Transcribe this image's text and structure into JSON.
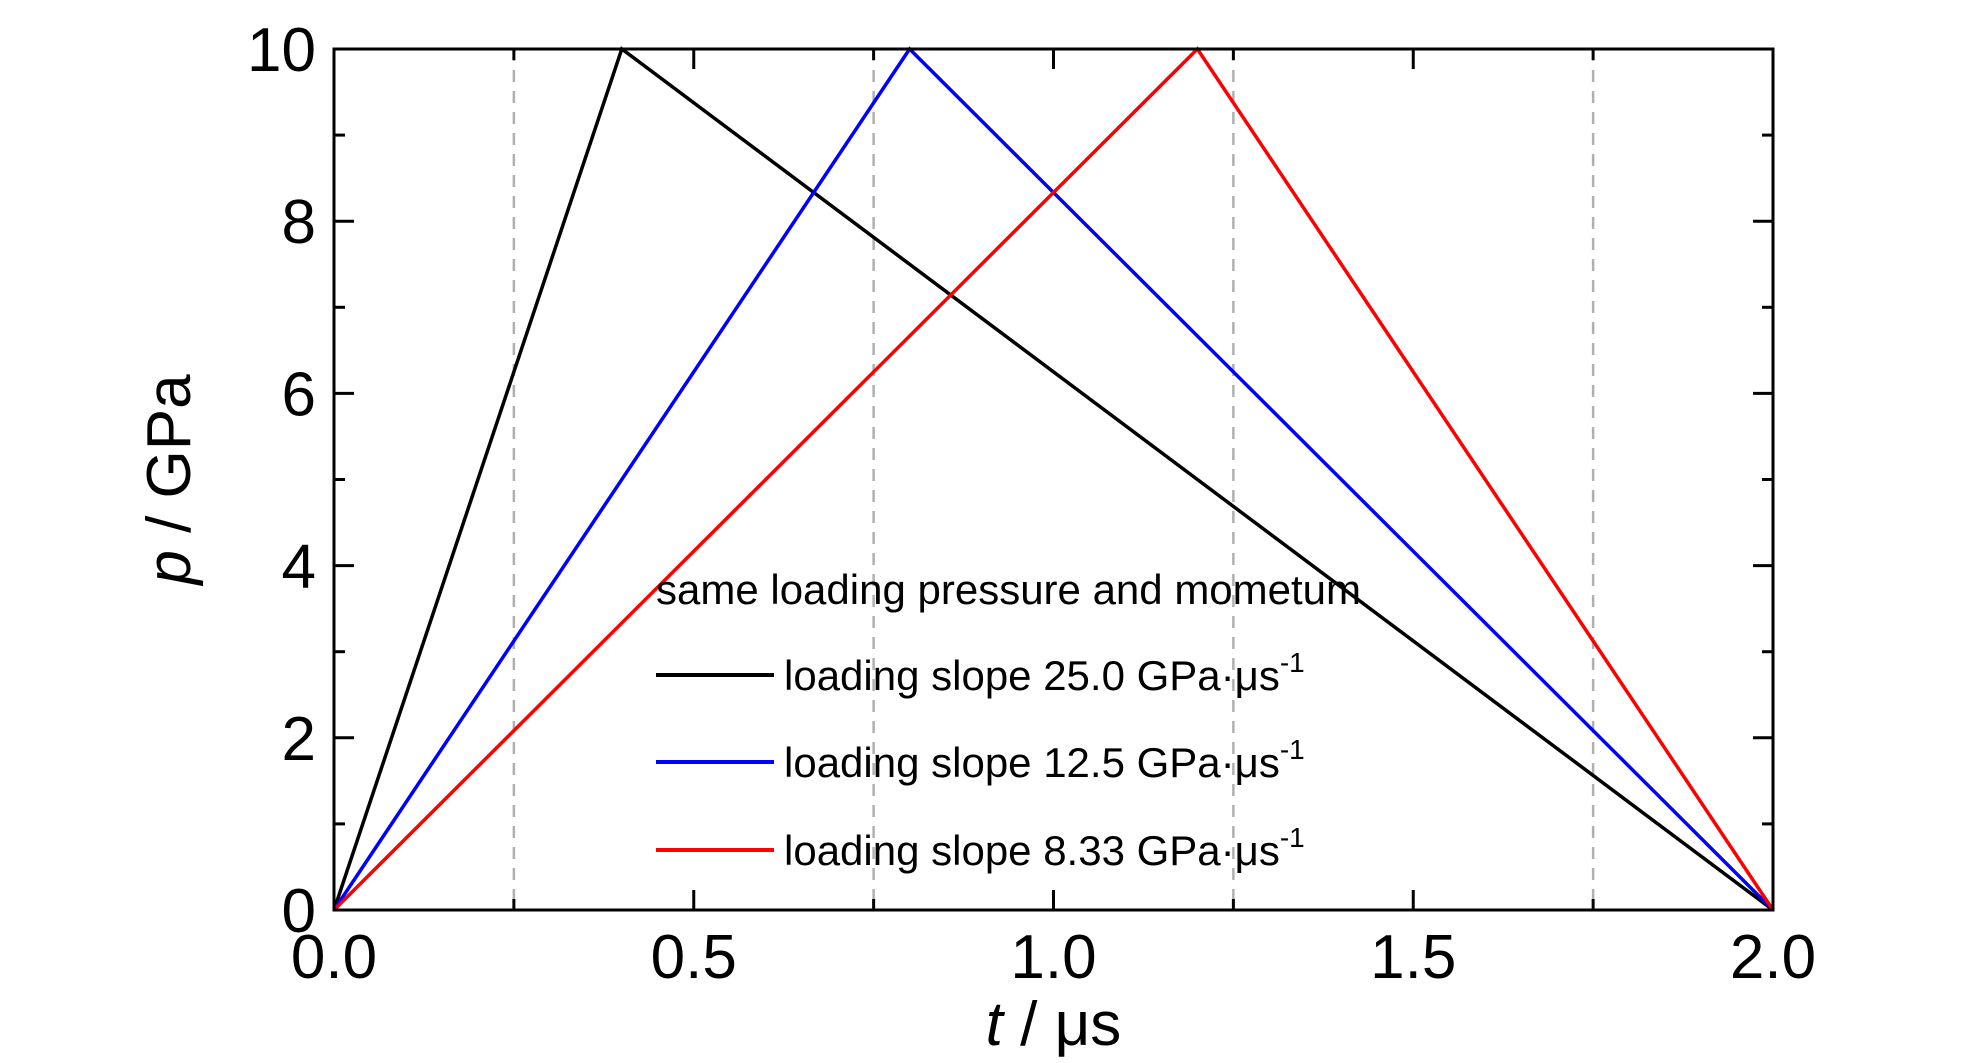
{
  "chart_data": {
    "type": "line",
    "title": "",
    "xlabel_var": "t",
    "xlabel_unit": " / μs",
    "ylabel_var": "p",
    "ylabel_unit": " / GPa",
    "xlim": [
      0,
      2.0
    ],
    "ylim": [
      0,
      10
    ],
    "x_ticks": [
      0.0,
      0.5,
      1.0,
      1.5,
      2.0
    ],
    "x_tick_labels": [
      "0.0",
      "0.5",
      "1.0",
      "1.5",
      "2.0"
    ],
    "y_ticks": [
      0,
      2,
      4,
      6,
      8,
      10
    ],
    "y_tick_labels": [
      "0",
      "2",
      "4",
      "6",
      "8",
      "10"
    ],
    "vertical_gridlines_dashed": [
      0.25,
      0.75,
      1.25,
      1.75
    ],
    "legend_title": "same loading pressure and mometum",
    "legend_position": "lower-center",
    "series": [
      {
        "name": "loading slope 25.0 GPa·μs",
        "name_sup": "-1",
        "color": "#000000",
        "x": [
          0.0,
          0.4,
          2.0
        ],
        "y": [
          0,
          10,
          0
        ]
      },
      {
        "name": "loading slope 12.5 GPa·μs",
        "name_sup": "-1",
        "color": "#0000ff",
        "x": [
          0.0,
          0.8,
          2.0
        ],
        "y": [
          0,
          10,
          0
        ]
      },
      {
        "name": "loading slope 8.33 GPa·μs",
        "name_sup": "-1",
        "color": "#ff0000",
        "x": [
          0.0,
          1.2,
          2.0
        ],
        "y": [
          0,
          10,
          0
        ]
      }
    ]
  }
}
